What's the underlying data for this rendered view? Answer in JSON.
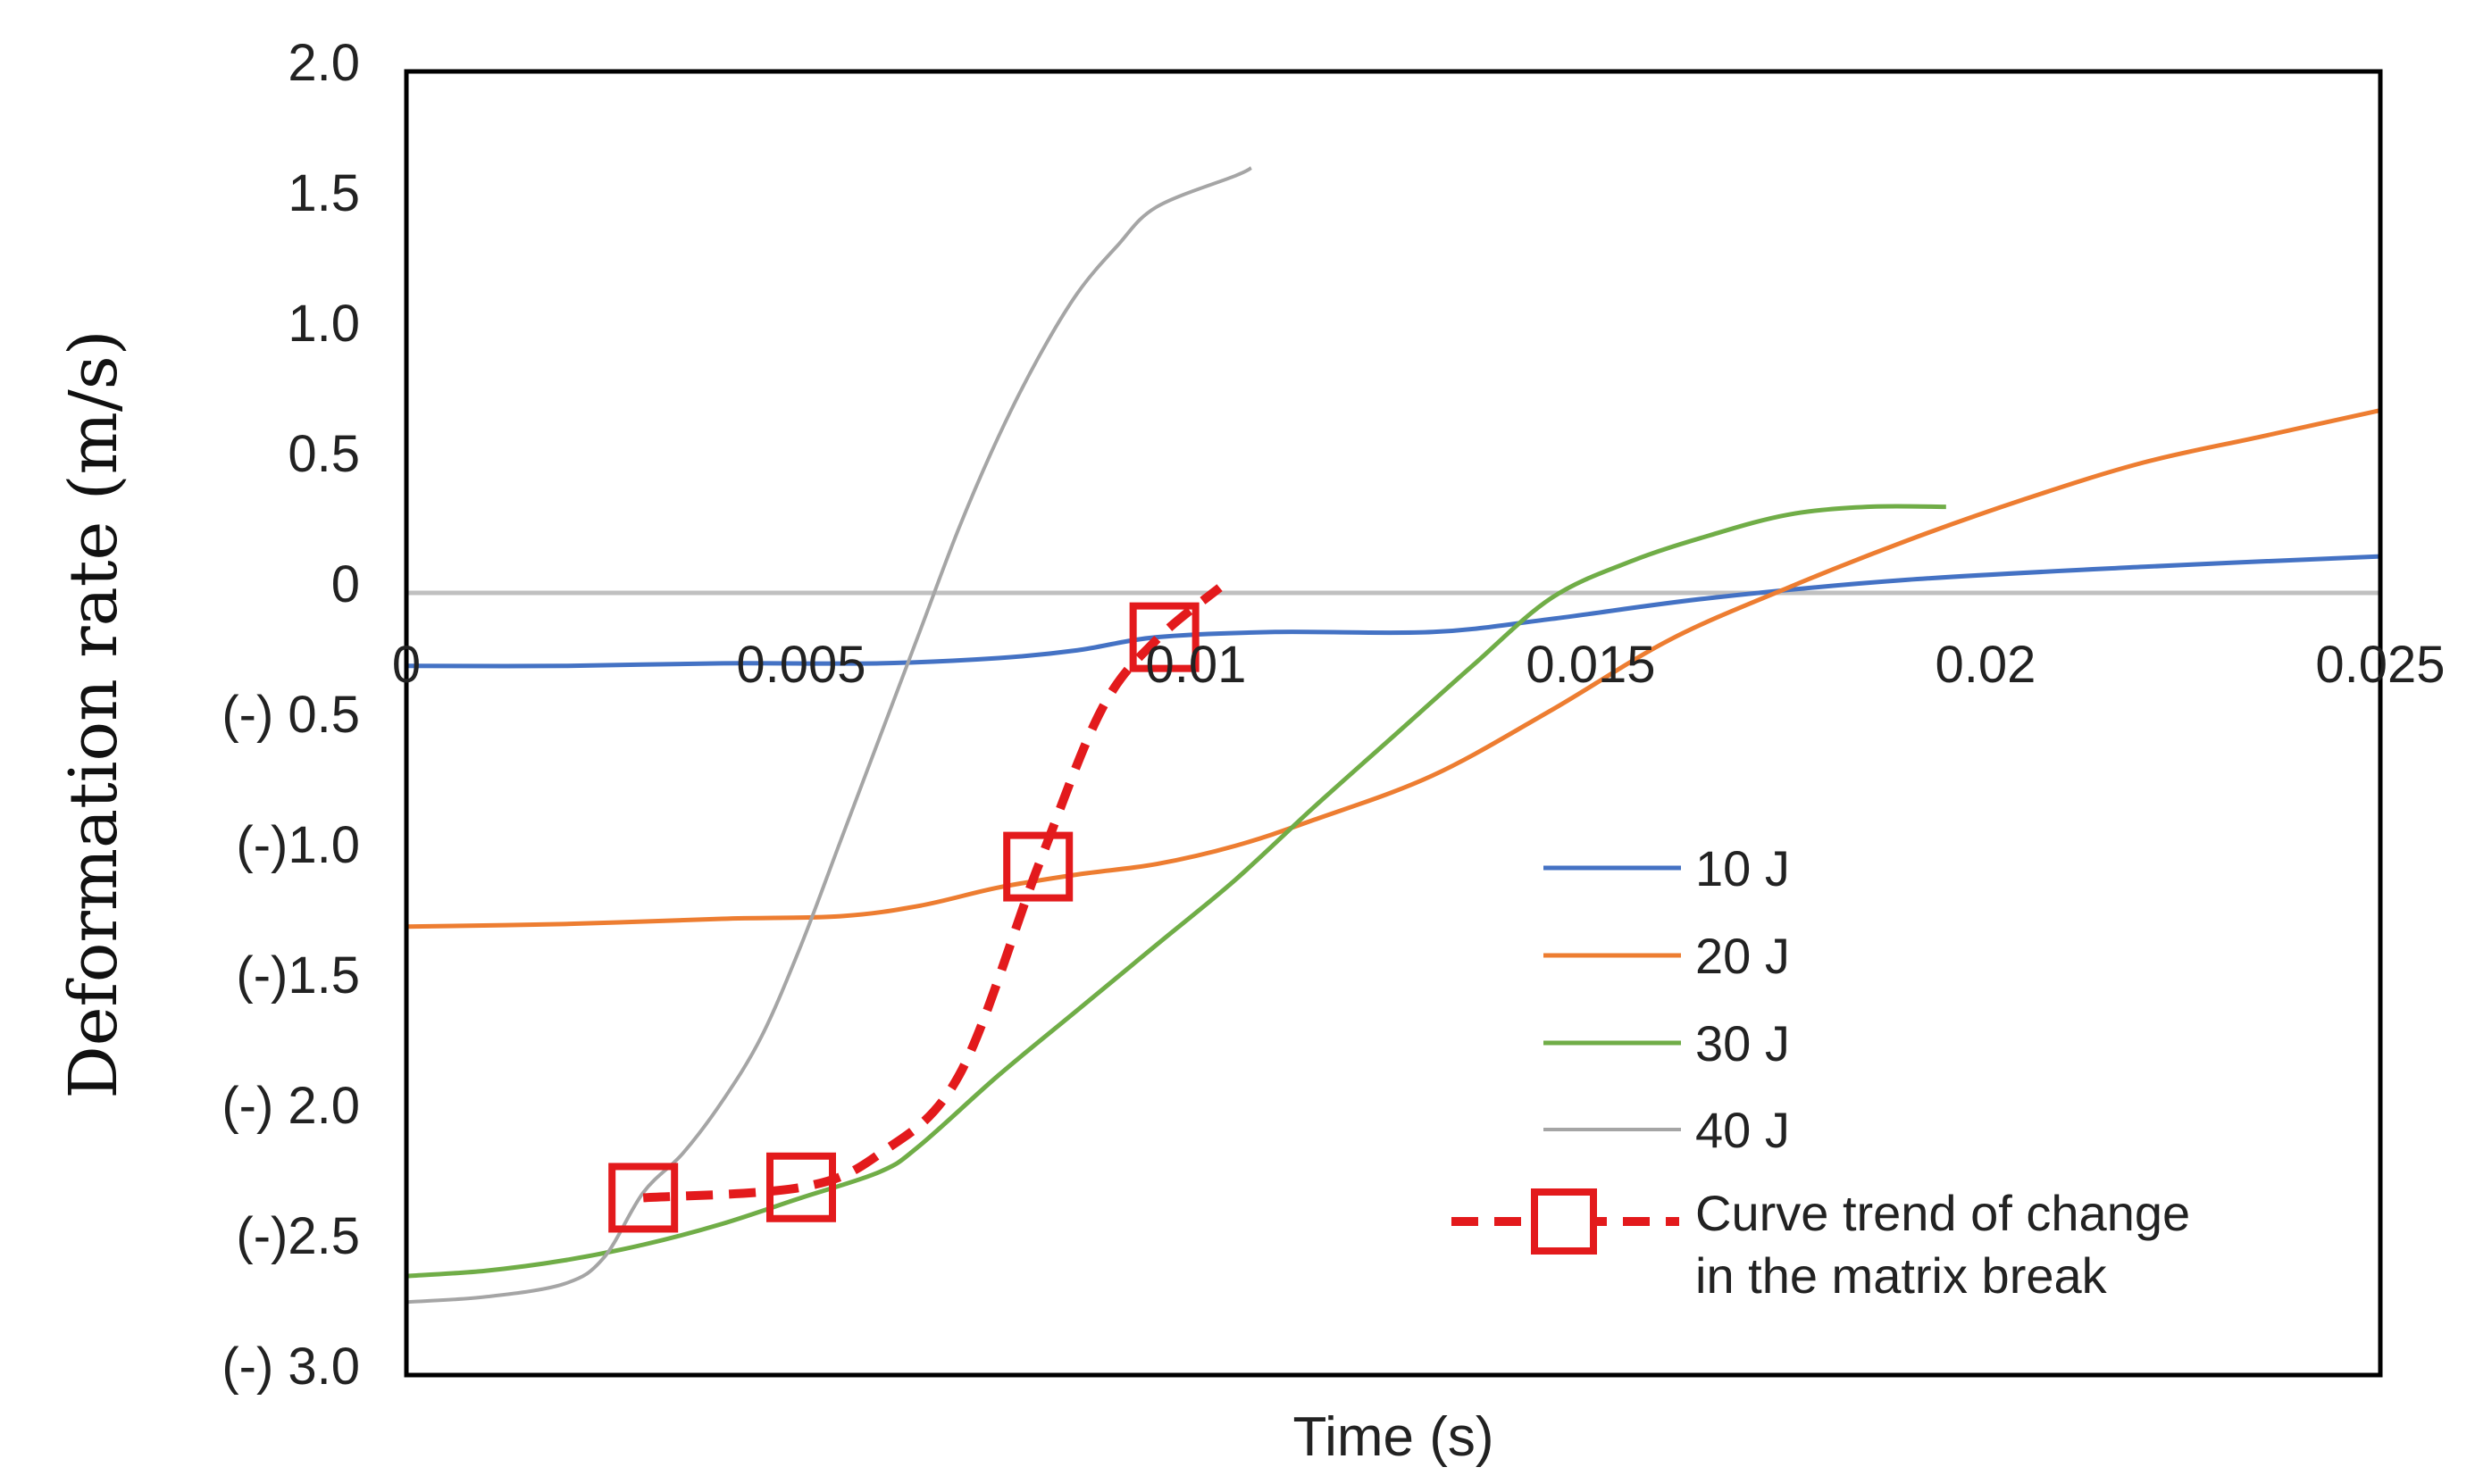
{
  "chart_data": {
    "type": "line",
    "title": "",
    "xlabel": "Time (s)",
    "ylabel": "Deformation rate (m/s)",
    "xlim": [
      0,
      0.025
    ],
    "ylim": [
      -3.0,
      2.0
    ],
    "x_tick_values": [
      0,
      0.005,
      0.01,
      0.015,
      0.02,
      0.025
    ],
    "x_tick_labels": [
      "0",
      "0.005",
      "0.01",
      "0.015",
      "0.02",
      "0.025"
    ],
    "y_tick_values": [
      2.0,
      1.5,
      1.0,
      0.5,
      0,
      -0.5,
      -1.0,
      -1.5,
      -2.0,
      -2.5,
      -3.0
    ],
    "y_tick_labels": [
      "2.0",
      "1.5",
      "1.0",
      "0.5",
      "0",
      "(-) 0.5",
      "(-)1.0",
      "(-)1.5",
      "(-) 2.0",
      "(-)2.5",
      "(-) 3.0"
    ],
    "zero_line": true,
    "grid": false,
    "legend_position": "lower-right",
    "series": [
      {
        "name": "10 J",
        "color": "#4472c4",
        "x": [
          0,
          0.002,
          0.004,
          0.006,
          0.0075,
          0.0085,
          0.0095,
          0.011,
          0.013,
          0.0145,
          0.0165,
          0.019,
          0.022,
          0.025
        ],
        "y": [
          -0.28,
          -0.28,
          -0.27,
          -0.27,
          -0.25,
          -0.22,
          -0.17,
          -0.15,
          -0.15,
          -0.1,
          -0.02,
          0.05,
          0.1,
          0.14
        ]
      },
      {
        "name": "20 J",
        "color": "#ed7d31",
        "x": [
          0,
          0.002,
          0.004,
          0.0055,
          0.0065,
          0.0075,
          0.0085,
          0.0095,
          0.0105,
          0.0115,
          0.013,
          0.0145,
          0.016,
          0.0175,
          0.019,
          0.0205,
          0.022,
          0.0235,
          0.025
        ],
        "y": [
          -1.28,
          -1.27,
          -1.25,
          -1.24,
          -1.2,
          -1.13,
          -1.08,
          -1.04,
          -0.97,
          -0.87,
          -0.7,
          -0.45,
          -0.18,
          0.02,
          0.2,
          0.36,
          0.5,
          0.6,
          0.7
        ]
      },
      {
        "name": "30 J",
        "color": "#70ad47",
        "x": [
          0,
          0.001,
          0.002,
          0.003,
          0.004,
          0.005,
          0.006,
          0.0065,
          0.0075,
          0.0085,
          0.0095,
          0.0105,
          0.0115,
          0.0125,
          0.0135,
          0.0145,
          0.0155,
          0.0165,
          0.0175,
          0.0185,
          0.0195
        ],
        "y": [
          -2.62,
          -2.6,
          -2.56,
          -2.5,
          -2.42,
          -2.32,
          -2.22,
          -2.12,
          -1.85,
          -1.6,
          -1.35,
          -1.1,
          -0.82,
          -0.55,
          -0.28,
          -0.02,
          0.12,
          0.22,
          0.3,
          0.33,
          0.33
        ]
      },
      {
        "name": "40 J",
        "color": "#a5a5a5",
        "x": [
          0,
          0.001,
          0.002,
          0.0025,
          0.003,
          0.0035,
          0.004,
          0.0045,
          0.005,
          0.0055,
          0.006,
          0.0065,
          0.007,
          0.0075,
          0.008,
          0.0085,
          0.009,
          0.0095,
          0.0105,
          0.0107
        ],
        "y": [
          -2.72,
          -2.7,
          -2.65,
          -2.55,
          -2.3,
          -2.15,
          -1.95,
          -1.7,
          -1.35,
          -0.95,
          -0.55,
          -0.15,
          0.25,
          0.6,
          0.9,
          1.15,
          1.33,
          1.48,
          1.6,
          1.63
        ]
      },
      {
        "name": "Curve trend of change in the matrix break",
        "color": "#e31a1c",
        "style": "dashed",
        "x": [
          0.003,
          0.005,
          0.006,
          0.007,
          0.008,
          0.0088,
          0.0095,
          0.0103
        ],
        "y": [
          -2.32,
          -2.28,
          -2.15,
          -1.85,
          -1.05,
          -0.45,
          -0.18,
          0.02
        ]
      }
    ],
    "markers": {
      "series": "Curve trend of change in the matrix break",
      "shape": "hollow-square",
      "x": [
        0.003,
        0.005,
        0.008,
        0.0096
      ],
      "y": [
        -2.32,
        -2.28,
        -1.05,
        -0.17
      ]
    },
    "legend_labels": [
      {
        "text": "10 J"
      },
      {
        "text": "20 J"
      },
      {
        "text": "30 J"
      },
      {
        "text": "40 J"
      },
      {
        "text": "Curve trend of change",
        "text2": "in the matrix break"
      }
    ]
  }
}
